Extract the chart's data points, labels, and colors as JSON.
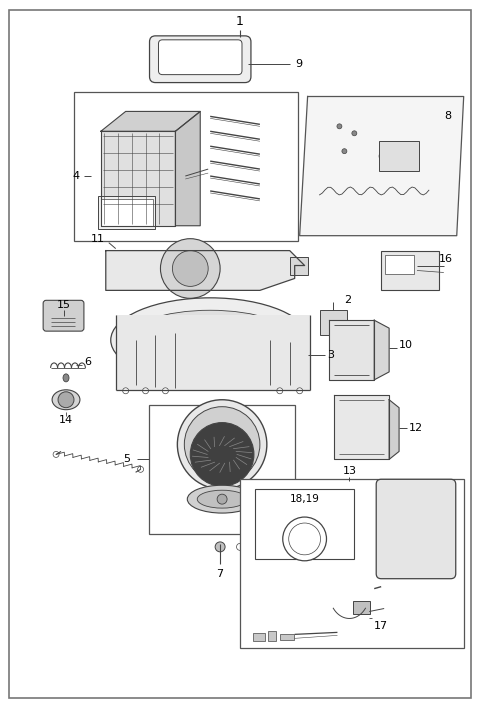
{
  "bg_color": "#ffffff",
  "border_color": "#555555",
  "line_color": "#444444",
  "fig_width": 4.8,
  "fig_height": 7.09,
  "dpi": 100
}
